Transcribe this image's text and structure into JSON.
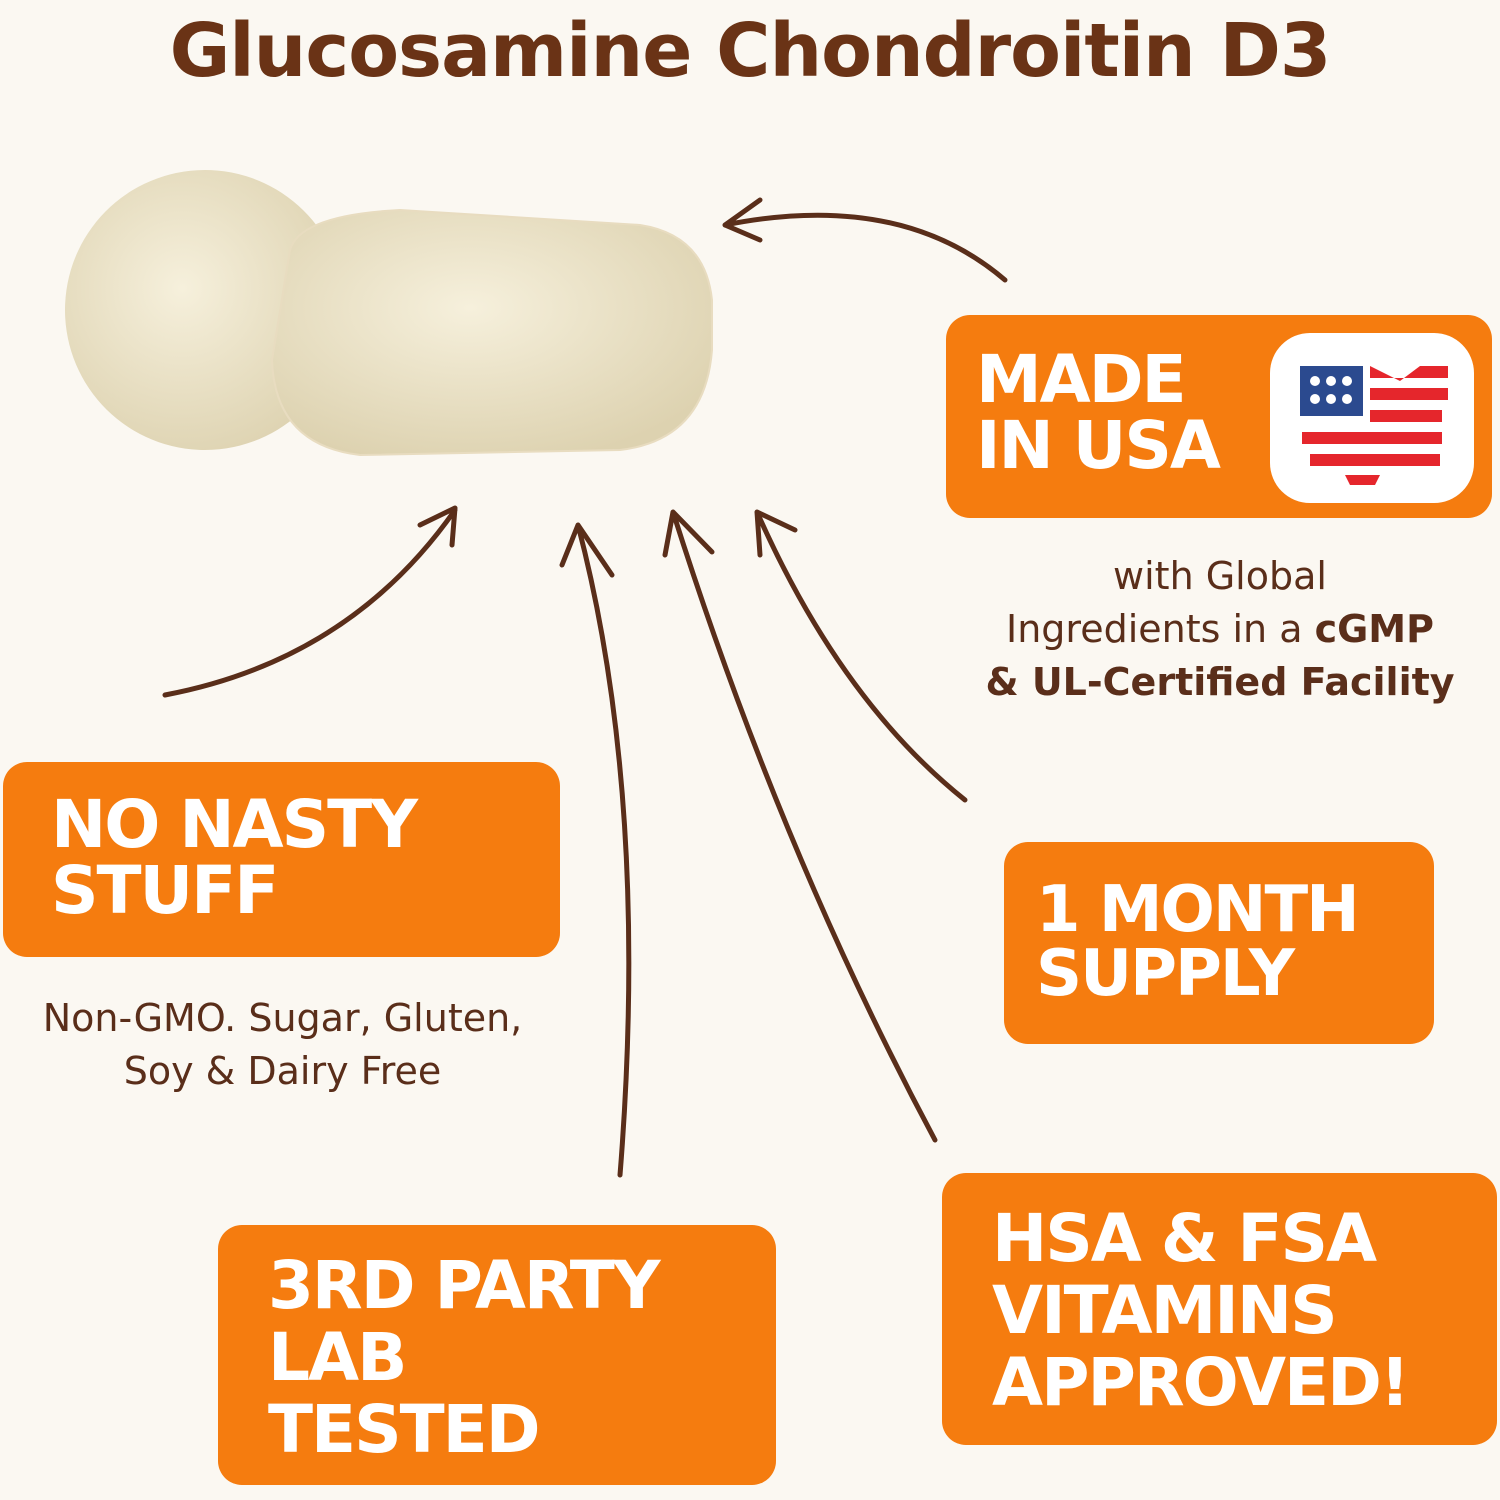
{
  "title": "Glucosamine Chondroitin D3",
  "badges": {
    "made_in_usa": {
      "label": "MADE\nIN USA",
      "icon": "usa-flag-map-icon"
    },
    "no_nasty": {
      "label": "NO NASTY\nSTUFF"
    },
    "one_month": {
      "label": "1 MONTH\nSUPPLY"
    },
    "third_party": {
      "label": "3RD PARTY\nLAB\nTESTED"
    },
    "hsa_fsa": {
      "label": "HSA & FSA\nVITAMINS\nAPPROVED!"
    }
  },
  "usa_note": {
    "line1": "with Global",
    "line2a": "Ingredients in a ",
    "line2b": "cGMP",
    "line3": "& UL-Certified Facility"
  },
  "no_nasty_note": {
    "line1": "Non-GMO. Sugar, Gluten,",
    "line2": "Soy & Dairy Free"
  },
  "colors": {
    "accent": "#f57c0f",
    "text": "#5a2e1a",
    "background": "#fbf8f2"
  }
}
